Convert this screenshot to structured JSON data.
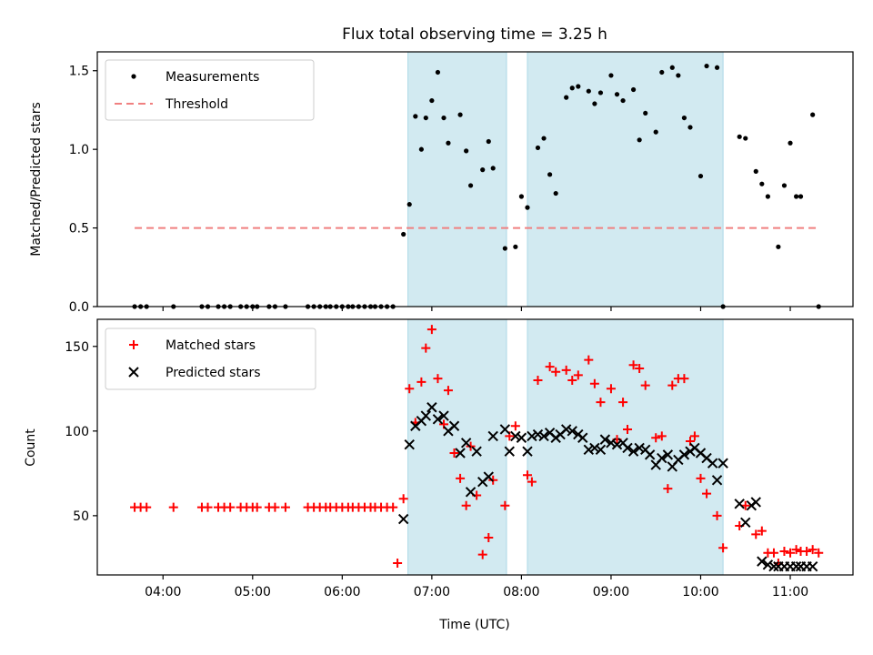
{
  "chart_data": [
    {
      "type": "scatter",
      "title": "Flux total observing time = 3.25 h",
      "xlabel": "",
      "ylabel": "Matched/Predicted stars",
      "ylim": [
        0,
        1.62
      ],
      "yticks": [
        0.0,
        0.5,
        1.0,
        1.5
      ],
      "ytick_labels": [
        "0.0",
        "0.5",
        "1.0",
        "1.5"
      ],
      "xlim": [
        "03:16",
        "11:42"
      ],
      "xticks": [
        "04:00",
        "05:00",
        "06:00",
        "07:00",
        "08:00",
        "09:00",
        "10:00",
        "11:00"
      ],
      "legend_position": "top-left",
      "shaded_intervals": [
        [
          "06:44",
          "07:50"
        ],
        [
          "08:04",
          "10:15"
        ]
      ],
      "shade_color": "#add8e6",
      "threshold": {
        "name": "Threshold",
        "value": 0.5,
        "x_range": [
          "03:41",
          "11:19"
        ],
        "color": "#f08080"
      },
      "series": [
        {
          "name": "Measurements",
          "color": "#000000",
          "marker": "dot",
          "x": [
            "03:41",
            "03:45",
            "03:49",
            "04:07",
            "04:26",
            "04:30",
            "04:37",
            "04:41",
            "04:45",
            "04:52",
            "04:56",
            "05:00",
            "05:03",
            "05:11",
            "05:15",
            "05:22",
            "05:37",
            "05:41",
            "05:45",
            "05:49",
            "05:52",
            "05:56",
            "06:00",
            "06:04",
            "06:07",
            "06:11",
            "06:15",
            "06:19",
            "06:22",
            "06:26",
            "06:30",
            "06:34",
            "06:41",
            "06:45",
            "06:49",
            "06:53",
            "06:56",
            "07:00",
            "07:04",
            "07:08",
            "07:11",
            "07:19",
            "07:23",
            "07:26",
            "07:34",
            "07:38",
            "07:41",
            "07:49",
            "07:56",
            "08:00",
            "08:04",
            "08:11",
            "08:15",
            "08:19",
            "08:23",
            "08:30",
            "08:34",
            "08:38",
            "08:45",
            "08:49",
            "08:53",
            "09:00",
            "09:04",
            "09:08",
            "09:15",
            "09:19",
            "09:23",
            "09:30",
            "09:34",
            "09:41",
            "09:45",
            "09:49",
            "09:53",
            "10:00",
            "10:04",
            "10:11",
            "10:15",
            "10:26",
            "10:30",
            "10:37",
            "10:41",
            "10:45",
            "10:52",
            "10:56",
            "11:00",
            "11:04",
            "11:07",
            "11:15",
            "11:19"
          ],
          "y": [
            0,
            0,
            0,
            0,
            0,
            0,
            0,
            0,
            0,
            0,
            0,
            0,
            0,
            0,
            0,
            0,
            0,
            0,
            0,
            0,
            0,
            0,
            0,
            0,
            0,
            0,
            0,
            0,
            0,
            0,
            0,
            0,
            0.46,
            0.65,
            1.21,
            1.0,
            1.2,
            1.31,
            1.49,
            1.2,
            1.04,
            1.22,
            0.99,
            0.77,
            0.87,
            1.05,
            0.88,
            0.37,
            0.38,
            0.7,
            0.63,
            1.01,
            1.07,
            0.84,
            0.72,
            1.33,
            1.39,
            1.4,
            1.37,
            1.29,
            1.36,
            1.47,
            1.35,
            1.31,
            1.38,
            1.06,
            1.23,
            1.11,
            1.49,
            1.52,
            1.47,
            1.2,
            1.14,
            0.83,
            1.53,
            1.52,
            0.0,
            1.08,
            1.07,
            0.86,
            0.78,
            0.7,
            0.38,
            0.77,
            1.04,
            0.7,
            0.7,
            1.22,
            0.0
          ]
        }
      ]
    },
    {
      "type": "scatter",
      "title": "",
      "xlabel": "Time (UTC)",
      "ylabel": "Count",
      "ylim": [
        15,
        166
      ],
      "yticks": [
        50,
        100,
        150
      ],
      "ytick_labels": [
        "50",
        "100",
        "150"
      ],
      "xlim": [
        "03:16",
        "11:42"
      ],
      "xticks": [
        "04:00",
        "05:00",
        "06:00",
        "07:00",
        "08:00",
        "09:00",
        "10:00",
        "11:00"
      ],
      "xtick_labels": [
        "04:00",
        "05:00",
        "06:00",
        "07:00",
        "08:00",
        "09:00",
        "10:00",
        "11:00"
      ],
      "legend_position": "top-left",
      "shaded_intervals": [
        [
          "06:44",
          "07:50"
        ],
        [
          "08:04",
          "10:15"
        ]
      ],
      "shade_color": "#add8e6",
      "series": [
        {
          "name": "Matched stars",
          "color": "#ff0000",
          "marker": "plus",
          "x": [
            "03:41",
            "03:45",
            "03:49",
            "04:07",
            "04:26",
            "04:30",
            "04:37",
            "04:41",
            "04:45",
            "04:52",
            "04:56",
            "05:00",
            "05:03",
            "05:11",
            "05:15",
            "05:22",
            "05:37",
            "05:41",
            "05:45",
            "05:49",
            "05:52",
            "05:56",
            "06:00",
            "06:04",
            "06:07",
            "06:11",
            "06:15",
            "06:19",
            "06:22",
            "06:26",
            "06:30",
            "06:34",
            "06:37",
            "06:41",
            "06:45",
            "06:49",
            "06:53",
            "06:56",
            "07:00",
            "07:04",
            "07:08",
            "07:11",
            "07:15",
            "07:19",
            "07:23",
            "07:26",
            "07:30",
            "07:34",
            "07:38",
            "07:41",
            "07:49",
            "07:52",
            "07:56",
            "08:04",
            "08:07",
            "08:11",
            "08:19",
            "08:23",
            "08:30",
            "08:34",
            "08:38",
            "08:45",
            "08:49",
            "08:53",
            "09:00",
            "09:04",
            "09:08",
            "09:11",
            "09:15",
            "09:19",
            "09:23",
            "09:30",
            "09:34",
            "09:38",
            "09:41",
            "09:45",
            "09:49",
            "09:53",
            "09:56",
            "10:00",
            "10:04",
            "10:11",
            "10:15",
            "10:26",
            "10:30",
            "10:37",
            "10:41",
            "10:45",
            "10:49",
            "10:52",
            "10:56",
            "11:00",
            "11:04",
            "11:07",
            "11:11",
            "11:15",
            "11:19"
          ],
          "y": [
            55,
            55,
            55,
            55,
            55,
            55,
            55,
            55,
            55,
            55,
            55,
            55,
            55,
            55,
            55,
            55,
            55,
            55,
            55,
            55,
            55,
            55,
            55,
            55,
            55,
            55,
            55,
            55,
            55,
            55,
            55,
            55,
            22,
            60,
            125,
            105,
            129,
            149,
            160,
            131,
            104,
            124,
            87,
            72,
            56,
            91,
            62,
            27,
            37,
            71,
            56,
            97,
            103,
            74,
            70,
            130,
            138,
            135,
            136,
            130,
            133,
            142,
            128,
            117,
            125,
            95,
            117,
            101,
            139,
            137,
            127,
            96,
            97,
            66,
            127,
            131,
            131,
            94,
            97,
            72,
            63,
            50,
            31,
            44,
            56,
            39,
            41,
            28,
            28,
            22,
            29,
            28,
            30,
            29,
            29,
            30,
            28
          ],
          "_note": ""
        },
        {
          "name": "Predicted stars",
          "color": "#000000",
          "marker": "cross",
          "x": [
            "06:41",
            "06:45",
            "06:49",
            "06:53",
            "06:56",
            "07:00",
            "07:04",
            "07:08",
            "07:11",
            "07:15",
            "07:19",
            "07:23",
            "07:26",
            "07:30",
            "07:34",
            "07:38",
            "07:41",
            "07:49",
            "07:52",
            "07:56",
            "08:00",
            "08:04",
            "08:07",
            "08:11",
            "08:15",
            "08:19",
            "08:23",
            "08:26",
            "08:30",
            "08:34",
            "08:38",
            "08:41",
            "08:45",
            "08:49",
            "08:53",
            "08:56",
            "09:00",
            "09:04",
            "09:08",
            "09:11",
            "09:15",
            "09:19",
            "09:23",
            "09:26",
            "09:30",
            "09:34",
            "09:38",
            "09:41",
            "09:45",
            "09:49",
            "09:53",
            "09:56",
            "10:00",
            "10:04",
            "10:08",
            "10:11",
            "10:15",
            "10:26",
            "10:30",
            "10:34",
            "10:37",
            "10:41",
            "10:45",
            "10:49",
            "10:52",
            "10:56",
            "11:00",
            "11:04",
            "11:07",
            "11:11",
            "11:15"
          ],
          "y": [
            48,
            92,
            103,
            106,
            109,
            114,
            107,
            109,
            100,
            103,
            87,
            93,
            64,
            88,
            70,
            73,
            97,
            101,
            88,
            97,
            96,
            88,
            97,
            98,
            97,
            99,
            96,
            98,
            101,
            100,
            98,
            96,
            89,
            90,
            89,
            95,
            93,
            92,
            93,
            90,
            88,
            90,
            89,
            86,
            80,
            84,
            86,
            79,
            83,
            86,
            88,
            90,
            87,
            84,
            81,
            71,
            81,
            57,
            46,
            56,
            58,
            23,
            21,
            20,
            20,
            20,
            20,
            20,
            20,
            20,
            20
          ]
        }
      ]
    }
  ]
}
